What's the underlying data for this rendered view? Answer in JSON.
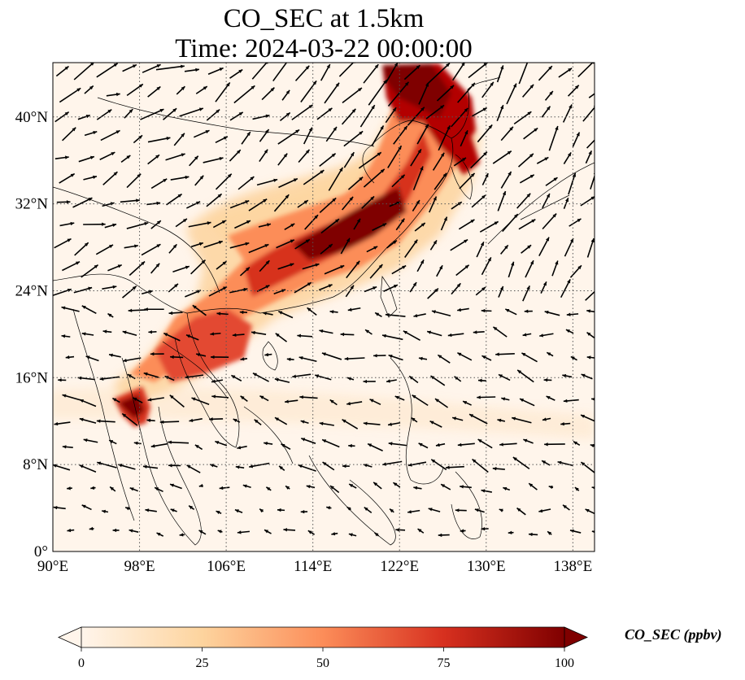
{
  "title": {
    "line1": "CO_SEC at 1.5km",
    "line2": "Time: 2024-03-22 00:00:00"
  },
  "map": {
    "lon_range": [
      90,
      140
    ],
    "lat_range": [
      0,
      45
    ],
    "x_ticks": [
      {
        "value": 90,
        "label": "90°E"
      },
      {
        "value": 98,
        "label": "98°E"
      },
      {
        "value": 106,
        "label": "106°E"
      },
      {
        "value": 114,
        "label": "114°E"
      },
      {
        "value": 122,
        "label": "122°E"
      },
      {
        "value": 130,
        "label": "130°E"
      },
      {
        "value": 138,
        "label": "138°E"
      }
    ],
    "y_ticks": [
      {
        "value": 0,
        "label": "0°"
      },
      {
        "value": 8,
        "label": "8°N"
      },
      {
        "value": 16,
        "label": "16°N"
      },
      {
        "value": 24,
        "label": "24°N"
      },
      {
        "value": 32,
        "label": "32°N"
      },
      {
        "value": 40,
        "label": "40°N"
      }
    ],
    "grid": true,
    "field_colors": [
      "#fff5eb",
      "#fdd49e",
      "#fc8d59",
      "#d7301f",
      "#7f0000"
    ]
  },
  "colorbar": {
    "label": "CO_SEC (ppbv)",
    "min": 0,
    "max": 100,
    "ticks": [
      "0",
      "25",
      "50",
      "75",
      "100"
    ],
    "extend": "both"
  }
}
